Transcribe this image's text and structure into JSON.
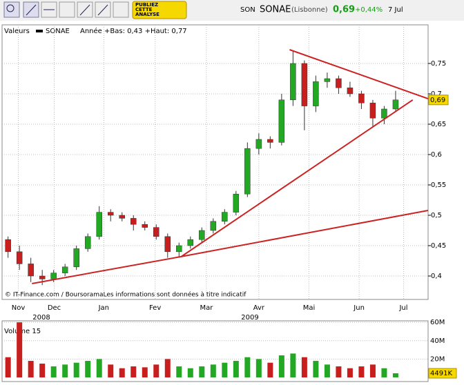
{
  "toolbar": {
    "badge": [
      "PUBLIEZ",
      "CETTE",
      "ANALYSE"
    ]
  },
  "quote": {
    "code": "SON",
    "name": "SONAE",
    "market": "(Lisbonne)",
    "price": "0,69",
    "change": "+0,44%",
    "date": "7 Jul"
  },
  "chart_data": [
    {
      "type": "candlestick",
      "legend": "Valeurs",
      "series_name": "SONAE",
      "range_label": "Année +Bas: 0,43 +Haut: 0,77",
      "copyright": "© IT-Finance.com / BoursoramaLes informations sont données à titre indicatif",
      "up_color": "#22a822",
      "down_color": "#c81e1e",
      "line_color": "#cc2222",
      "x": [
        0,
        1,
        2,
        3,
        4,
        5,
        6,
        7,
        8,
        9,
        10,
        11,
        12,
        13,
        14,
        15,
        16,
        17,
        18,
        19,
        20,
        21,
        22,
        23,
        24,
        25,
        26,
        27,
        28,
        29,
        30,
        31,
        32,
        33,
        34
      ],
      "open": [
        0.46,
        0.44,
        0.42,
        0.4,
        0.395,
        0.405,
        0.415,
        0.445,
        0.465,
        0.505,
        0.5,
        0.495,
        0.485,
        0.48,
        0.465,
        0.44,
        0.45,
        0.46,
        0.475,
        0.49,
        0.505,
        0.535,
        0.61,
        0.625,
        0.62,
        0.69,
        0.75,
        0.68,
        0.72,
        0.725,
        0.71,
        0.7,
        0.685,
        0.66,
        0.675
      ],
      "high": [
        0.465,
        0.45,
        0.43,
        0.41,
        0.41,
        0.42,
        0.45,
        0.47,
        0.515,
        0.51,
        0.505,
        0.5,
        0.49,
        0.485,
        0.47,
        0.455,
        0.465,
        0.48,
        0.495,
        0.51,
        0.54,
        0.62,
        0.635,
        0.63,
        0.7,
        0.77,
        0.755,
        0.73,
        0.735,
        0.73,
        0.72,
        0.705,
        0.69,
        0.68,
        0.705
      ],
      "low": [
        0.43,
        0.41,
        0.39,
        0.385,
        0.39,
        0.4,
        0.41,
        0.44,
        0.46,
        0.49,
        0.49,
        0.475,
        0.475,
        0.46,
        0.43,
        0.43,
        0.445,
        0.455,
        0.47,
        0.485,
        0.5,
        0.53,
        0.6,
        0.61,
        0.615,
        0.68,
        0.64,
        0.67,
        0.71,
        0.7,
        0.695,
        0.675,
        0.645,
        0.65,
        0.67
      ],
      "close": [
        0.44,
        0.42,
        0.4,
        0.395,
        0.405,
        0.415,
        0.445,
        0.465,
        0.505,
        0.5,
        0.495,
        0.485,
        0.48,
        0.465,
        0.44,
        0.45,
        0.46,
        0.475,
        0.49,
        0.505,
        0.535,
        0.61,
        0.625,
        0.62,
        0.69,
        0.75,
        0.68,
        0.72,
        0.725,
        0.71,
        0.7,
        0.685,
        0.66,
        0.675,
        0.69
      ],
      "trendlines": [
        {
          "x": [
            2.1,
            15.2
          ],
          "values": [
            0.3875,
            0.432
          ]
        },
        {
          "x": [
            15.2,
            35.5
          ],
          "values": [
            0.432,
            0.69
          ]
        },
        {
          "x": [
            24.7,
            36.85
          ],
          "values": [
            0.7727,
            0.692
          ]
        },
        {
          "x": [
            15.2,
            36.85
          ],
          "values": [
            0.432,
            0.508
          ]
        }
      ],
      "last": {
        "value": 0.69,
        "label": "0,69"
      },
      "xlim": [
        -0.1,
        36.85
      ],
      "xticks": [
        {
          "value": 0.9,
          "label": "Nov"
        },
        {
          "value": 4.05,
          "label": "Dec"
        },
        {
          "value": 8.4,
          "label": "Jan"
        },
        {
          "value": 12.9,
          "label": "Fev"
        },
        {
          "value": 17.4,
          "label": "Mar"
        },
        {
          "value": 22,
          "label": "Avr"
        },
        {
          "value": 26.4,
          "label": "Mai"
        },
        {
          "value": 30.8,
          "label": "Jun"
        },
        {
          "value": 34.7,
          "label": "Jul"
        }
      ],
      "year_labels": [
        "2008",
        "2009"
      ],
      "ylim": [
        0.3614,
        0.8136
      ],
      "yticks": [
        {
          "value": 0.4,
          "label": "0,4"
        },
        {
          "value": 0.45,
          "label": "0,45"
        },
        {
          "value": 0.5,
          "label": "0,5"
        },
        {
          "value": 0.55,
          "label": "0,55"
        },
        {
          "value": 0.6,
          "label": "0,6"
        },
        {
          "value": 0.65,
          "label": "0,65"
        },
        {
          "value": 0.7,
          "label": "0,7"
        },
        {
          "value": 0.75,
          "label": "0,75"
        }
      ],
      "grid": true
    },
    {
      "type": "volume",
      "title": "Volume 15",
      "values": [
        22000000,
        60000000,
        18000000,
        15000000,
        12000000,
        14000000,
        16000000,
        18000000,
        20000000,
        14000000,
        10000000,
        12000000,
        11000000,
        14000000,
        20000000,
        12000000,
        10000000,
        12000000,
        14000000,
        16000000,
        18000000,
        22000000,
        20000000,
        16000000,
        24000000,
        26000000,
        22000000,
        18000000,
        14000000,
        12000000,
        10000000,
        12000000,
        14000000,
        10000000,
        4491000
      ],
      "last": {
        "value": 4491000,
        "label": "4491K"
      },
      "ylim": [
        0,
        61600000
      ],
      "yticks": [
        {
          "value": 20000000,
          "label": "20M"
        },
        {
          "value": 40000000,
          "label": "40M"
        },
        {
          "value": 60000000,
          "label": "60M"
        }
      ],
      "grid": true
    }
  ]
}
